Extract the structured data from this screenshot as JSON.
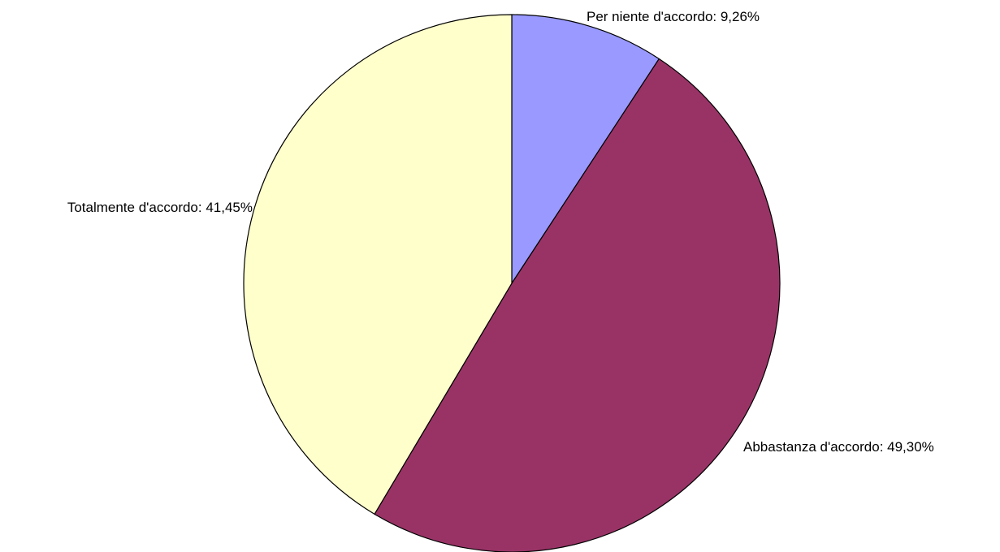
{
  "chart_data": {
    "type": "pie",
    "title": "",
    "legend": "none",
    "slices": [
      {
        "label": "Per niente d'accordo",
        "value": 9.26,
        "display": "Per niente d'accordo: 9,26%",
        "color": "#9999FF"
      },
      {
        "label": "Abbastanza d'accordo",
        "value": 49.3,
        "display": "Abbastanza d'accordo: 49,30%",
        "color": "#993366"
      },
      {
        "label": "Totalmente d'accordo",
        "value": 41.45,
        "display": "Totalmente d'accordo: 41,45%",
        "color": "#FFFFCC"
      }
    ]
  }
}
